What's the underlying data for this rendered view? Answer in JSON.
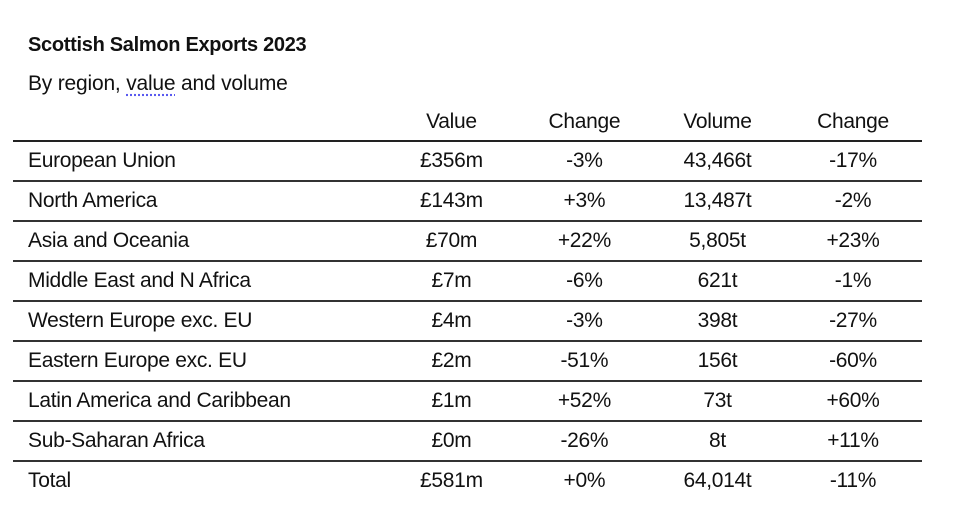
{
  "title": "Scottish Salmon Exports 2023",
  "subtitle": {
    "before": "By region, ",
    "underlined": "value",
    "after": " and volume"
  },
  "columns": [
    "",
    "Value",
    "Change",
    "Volume",
    "Change"
  ],
  "rows": [
    {
      "region": "European Union",
      "value": "£356m",
      "value_change": "-3%",
      "volume": "43,466t",
      "volume_change": "-17%"
    },
    {
      "region": "North America",
      "value": "£143m",
      "value_change": "+3%",
      "volume": "13,487t",
      "volume_change": "-2%"
    },
    {
      "region": "Asia and Oceania",
      "value": "£70m",
      "value_change": "+22%",
      "volume": "5,805t",
      "volume_change": "+23%"
    },
    {
      "region": "Middle East and N Africa",
      "value": "£7m",
      "value_change": "-6%",
      "volume": "621t",
      "volume_change": "-1%"
    },
    {
      "region": "Western Europe exc. EU",
      "value": "£4m",
      "value_change": "-3%",
      "volume": "398t",
      "volume_change": "-27%"
    },
    {
      "region": "Eastern Europe exc. EU",
      "value": "£2m",
      "value_change": "-51%",
      "volume": "156t",
      "volume_change": "-60%"
    },
    {
      "region": "Latin America and Caribbean",
      "value": "£1m",
      "value_change": "+52%",
      "volume": "73t",
      "volume_change": "+60%"
    },
    {
      "region": "Sub-Saharan Africa",
      "value": "£0m",
      "value_change": "-26%",
      "volume": "8t",
      "volume_change": "+11%"
    },
    {
      "region": "Total",
      "value": "£581m",
      "value_change": "+0%",
      "volume": "64,014t",
      "volume_change": "-11%"
    }
  ]
}
